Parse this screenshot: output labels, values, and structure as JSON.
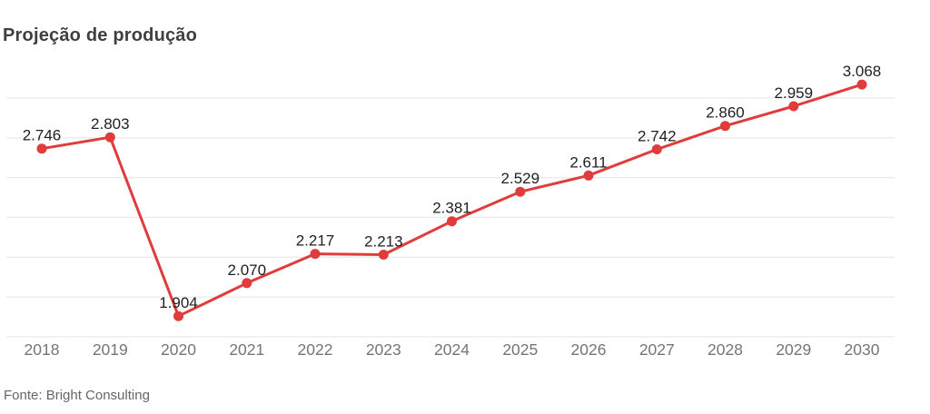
{
  "title": "Projeção de produção",
  "source": "Fonte: Bright Consulting",
  "chart_data": {
    "type": "line",
    "title": "Projeção de produção",
    "categories": [
      "2018",
      "2019",
      "2020",
      "2021",
      "2022",
      "2023",
      "2024",
      "2025",
      "2026",
      "2027",
      "2028",
      "2029",
      "2030"
    ],
    "values": [
      2746,
      2803,
      1904,
      2070,
      2217,
      2213,
      2381,
      2529,
      2611,
      2742,
      2860,
      2959,
      3068
    ],
    "point_labels": [
      "2.746",
      "2.803",
      "1.904",
      "2.070",
      "2.217",
      "2.213",
      "2.381",
      "2.529",
      "2.611",
      "2.742",
      "2.860",
      "2.959",
      "3.068"
    ],
    "xlabel": "",
    "ylabel": "",
    "ylim": [
      1800,
      3100
    ],
    "grid_values": [
      1800,
      2000,
      2200,
      2400,
      2600,
      2800,
      3000
    ],
    "grid_on": true,
    "legend": "none",
    "line_color": "#e03c3c",
    "point_color": "#e03c3c",
    "grid_color": "#ebebeb",
    "point_label_color": "#212121",
    "axis_tick_color": "#757575"
  }
}
